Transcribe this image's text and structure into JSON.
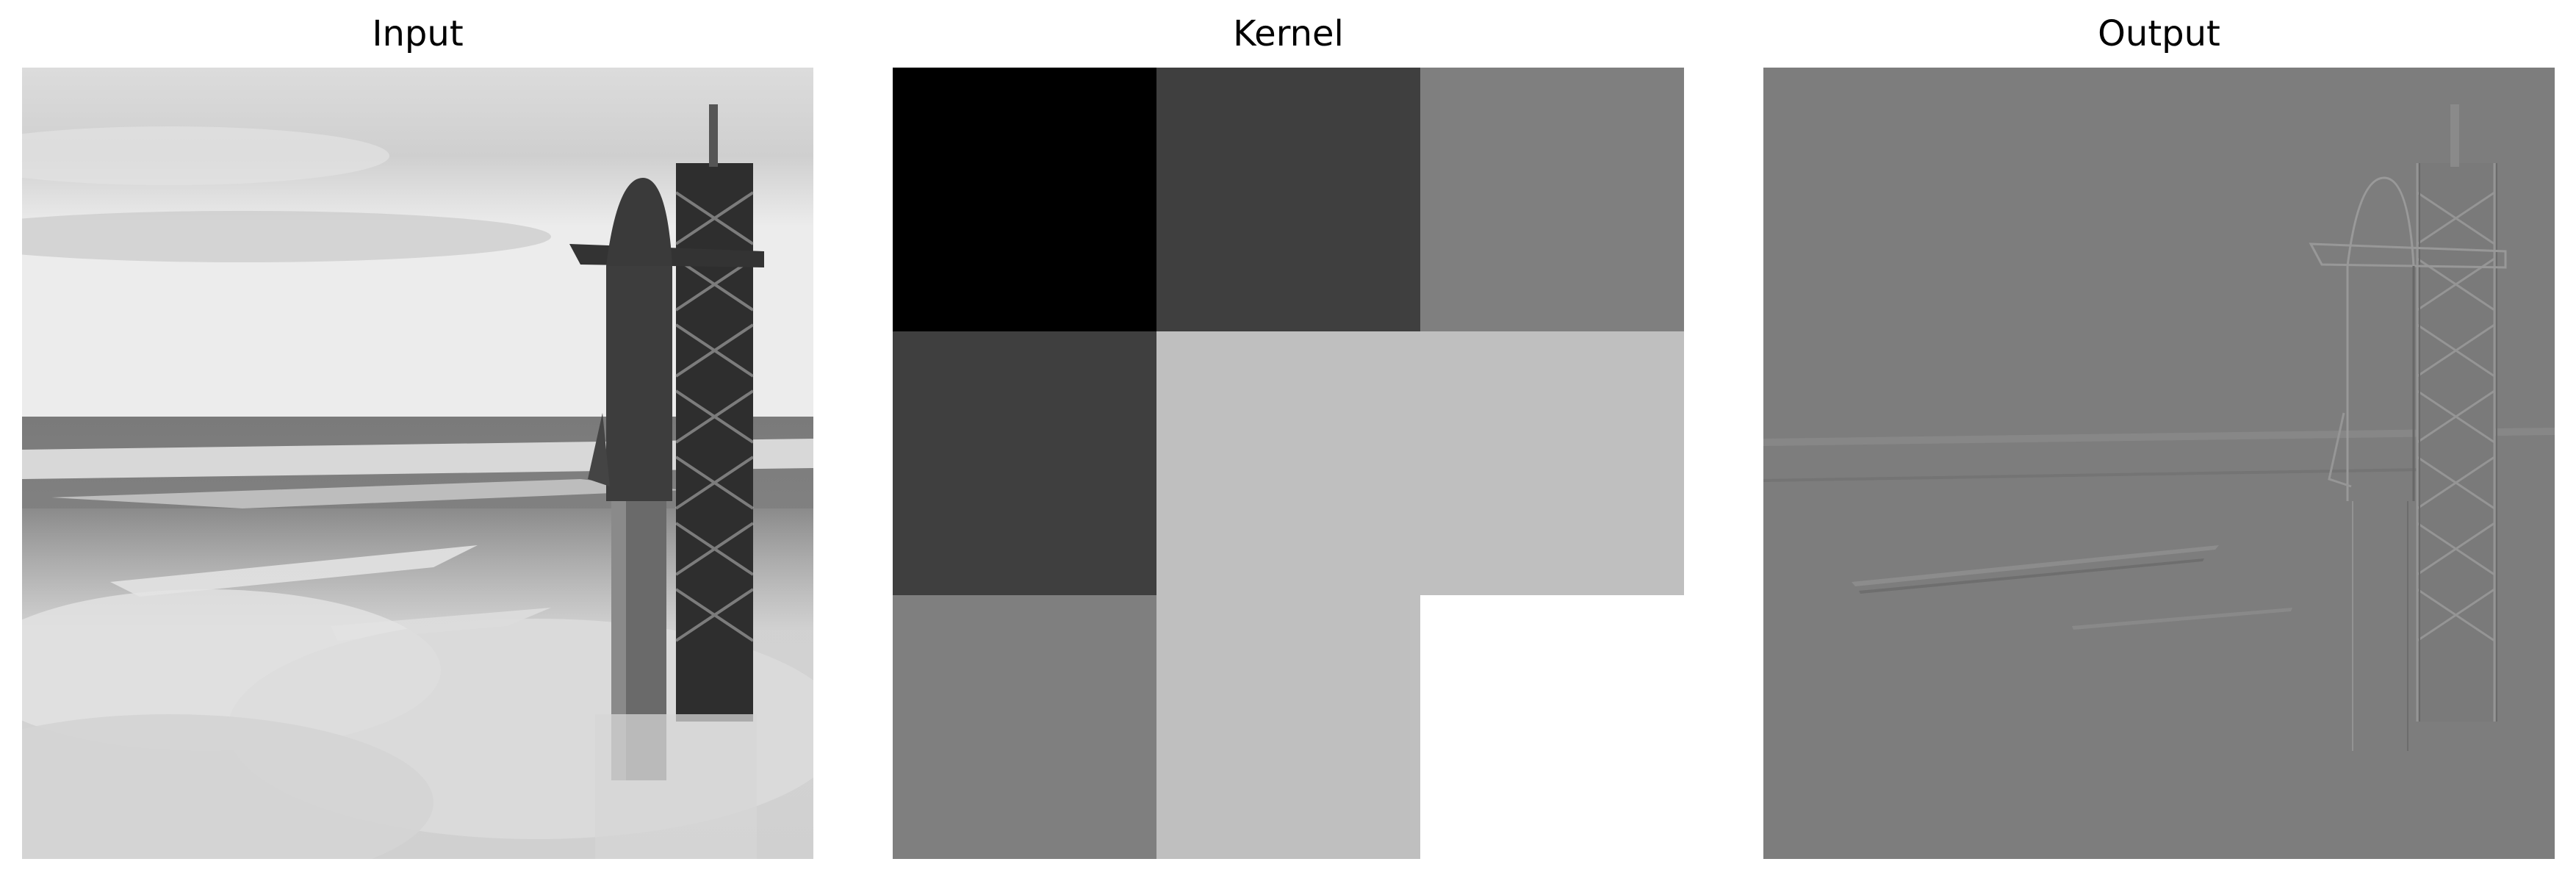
{
  "panels": {
    "input": {
      "title": "Input"
    },
    "kernel": {
      "title": "Kernel",
      "cell_colors": [
        [
          "#000000",
          "#3f3f3f",
          "#7f7f7f"
        ],
        [
          "#3f3f3f",
          "#bfbfbf",
          "#bfbfbf"
        ],
        [
          "#7f7f7f",
          "#bfbfbf",
          "#ffffff"
        ]
      ]
    },
    "output": {
      "title": "Output"
    }
  }
}
